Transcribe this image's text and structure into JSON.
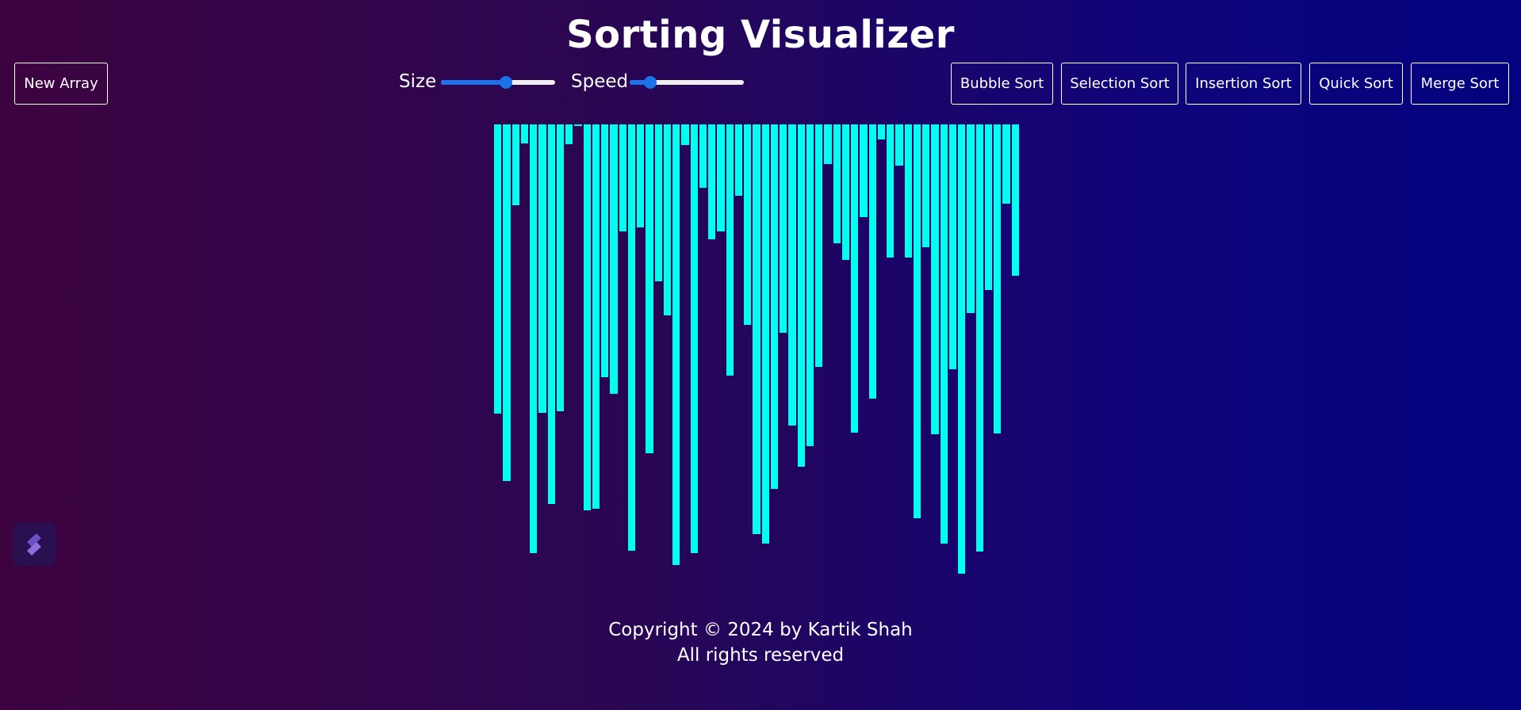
{
  "header": {
    "title": "Sorting Visualizer"
  },
  "toolbar": {
    "new_array_label": "New Array",
    "size_label": "Size",
    "speed_label": "Speed",
    "size_value": 0.57,
    "speed_value": 0.18,
    "slider_color": "#1a73e8",
    "algorithms": [
      {
        "label": "Bubble Sort"
      },
      {
        "label": "Selection Sort"
      },
      {
        "label": "Insertion Sort"
      },
      {
        "label": "Quick Sort"
      },
      {
        "label": "Merge Sort"
      }
    ]
  },
  "chart_data": {
    "type": "bar",
    "bar_color": "#00ffee",
    "values": [
      365,
      450,
      102,
      24,
      541,
      364,
      479,
      362,
      25,
      2,
      487,
      485,
      319,
      340,
      135,
      538,
      130,
      415,
      198,
      241,
      556,
      26,
      541,
      80,
      145,
      135,
      317,
      90,
      253,
      517,
      529,
      460,
      263,
      380,
      432,
      406,
      306,
      50,
      150,
      171,
      389,
      117,
      346,
      19,
      168,
      52,
      168,
      497,
      155,
      391,
      529,
      309,
      567,
      238,
      539,
      209,
      390,
      100,
      191
    ],
    "ylim": [
      0,
      600
    ]
  },
  "footer": {
    "copyright": "Copyright © 2024 by Kartik Shah",
    "rights": "All rights reserved"
  },
  "badge": {
    "icon": "s-logo-icon"
  }
}
